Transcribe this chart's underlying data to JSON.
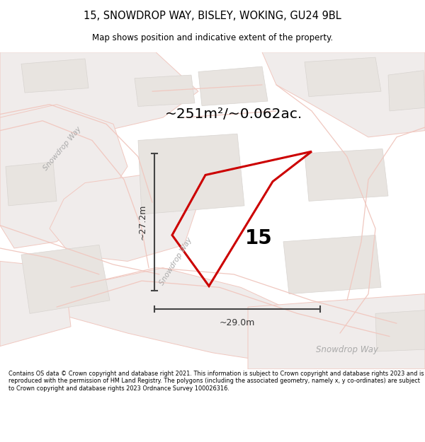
{
  "title": "15, SNOWDROP WAY, BISLEY, WOKING, GU24 9BL",
  "subtitle": "Map shows position and indicative extent of the property.",
  "area_text": "~251m²/~0.062ac.",
  "property_number": "15",
  "dim_width": "~29.0m",
  "dim_height": "~27.2m",
  "footer": "Contains OS data © Crown copyright and database right 2021. This information is subject to Crown copyright and database rights 2023 and is reproduced with the permission of HM Land Registry. The polygons (including the associated geometry, namely x, y co-ordinates) are subject to Crown copyright and database rights 2023 Ordnance Survey 100026316.",
  "map_bg": "#f7f5f3",
  "road_fill": "#f0eceb",
  "road_stroke": "#f0c8c0",
  "building_fill": "#e8e4e0",
  "building_stroke": "#d8d4d0",
  "property_stroke": "#cc0000",
  "title_color": "#000000",
  "text_color": "#000000",
  "dim_color": "#333333",
  "footer_color": "#000000",
  "road_label_color": "#aaaaaa",
  "white_bg": "#ffffff",
  "divider_color": "#cccccc"
}
